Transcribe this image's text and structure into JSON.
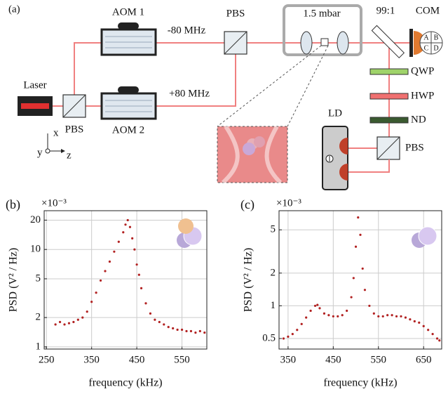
{
  "diagram": {
    "panel": "(a)",
    "aom1": "AOM 1",
    "aom2": "AOM 2",
    "freq1": "-80 MHz",
    "freq2": "+80 MHz",
    "laser": "Laser",
    "pbs1": "PBS",
    "pbs2": "PBS",
    "pbs3": "PBS",
    "pressure": "1.5 mbar",
    "splitter": "99:1",
    "com": "COM",
    "quadrants": [
      "A",
      "B",
      "C",
      "D"
    ],
    "qwp": "QWP",
    "hwp": "HWP",
    "nd": "ND",
    "ld": "LD",
    "axes": [
      "x",
      "y",
      "z"
    ]
  },
  "chart_data": [
    {
      "type": "scatter",
      "panel": "(b)",
      "multiplier": "×10⁻³",
      "x_label": "frequency (kHz)",
      "y_label": "PSD (V² / Hz)",
      "color": "#b22222",
      "log_y": true,
      "grid": true,
      "xlim": [
        245,
        605
      ],
      "ylim": [
        0.95,
        25
      ],
      "xticks": [
        250,
        350,
        450,
        550
      ],
      "yticks": [
        1,
        2,
        5,
        10,
        20
      ],
      "x": [
        270,
        280,
        290,
        300,
        310,
        320,
        330,
        340,
        350,
        360,
        370,
        380,
        390,
        400,
        410,
        420,
        425,
        430,
        435,
        440,
        445,
        450,
        455,
        460,
        470,
        480,
        490,
        500,
        510,
        520,
        530,
        540,
        550,
        560,
        570,
        580,
        590,
        600
      ],
      "values": [
        1.7,
        1.8,
        1.7,
        1.75,
        1.8,
        1.9,
        2,
        2.3,
        2.9,
        3.6,
        4.8,
        6,
        7.5,
        9.5,
        12,
        15,
        18,
        20,
        17,
        13,
        10,
        7,
        5.5,
        4,
        2.8,
        2.2,
        1.9,
        1.8,
        1.7,
        1.6,
        1.55,
        1.5,
        1.5,
        1.45,
        1.45,
        1.4,
        1.45,
        1.4
      ]
    },
    {
      "type": "scatter",
      "panel": "(c)",
      "multiplier": "×10⁻³",
      "x_label": "frequency (kHz)",
      "y_label": "PSD (V² / Hz)",
      "color": "#b22222",
      "log_y": true,
      "grid": true,
      "xlim": [
        330,
        690
      ],
      "ylim": [
        0.4,
        7.5
      ],
      "xticks": [
        350,
        450,
        550,
        650
      ],
      "yticks": [
        0.5,
        1,
        2,
        5
      ],
      "x": [
        340,
        350,
        360,
        370,
        380,
        390,
        400,
        410,
        415,
        420,
        430,
        440,
        450,
        460,
        470,
        480,
        490,
        495,
        500,
        505,
        510,
        515,
        520,
        530,
        540,
        550,
        560,
        570,
        580,
        590,
        600,
        610,
        620,
        630,
        640,
        650,
        660,
        670,
        680,
        685
      ],
      "values": [
        0.5,
        0.52,
        0.55,
        0.6,
        0.68,
        0.78,
        0.9,
        1.0,
        1.02,
        0.95,
        0.85,
        0.82,
        0.8,
        0.8,
        0.82,
        0.9,
        1.2,
        1.8,
        3.5,
        6.5,
        4.5,
        2.2,
        1.4,
        1.0,
        0.85,
        0.8,
        0.8,
        0.82,
        0.82,
        0.8,
        0.8,
        0.78,
        0.75,
        0.72,
        0.7,
        0.65,
        0.6,
        0.55,
        0.5,
        0.48
      ]
    }
  ]
}
